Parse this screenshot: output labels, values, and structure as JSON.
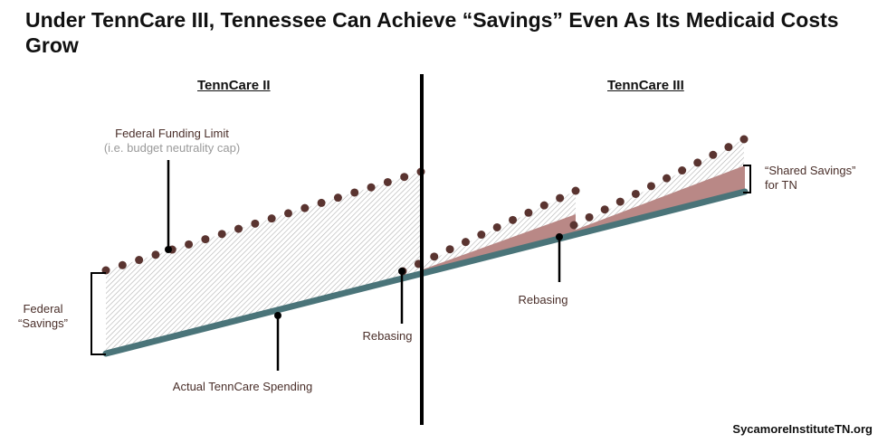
{
  "title": "Under TennCare III, Tennessee Can Achieve “Savings” Even As Its Medicaid Costs Grow",
  "sections": {
    "left": "TennCare II",
    "right": "TennCare III"
  },
  "labels": {
    "funding_limit": "Federal Funding Limit",
    "funding_limit_sub": "(i.e. budget neutrality cap)",
    "federal_savings_1": "Federal",
    "federal_savings_2": "“Savings”",
    "actual_spending": "Actual TennCare Spending",
    "rebasing_1": "Rebasing",
    "rebasing_2": "Rebasing",
    "shared_savings_1": "“Shared Savings”",
    "shared_savings_2": "for TN"
  },
  "credit": "SycamoreInstituteTN.org",
  "colors": {
    "spending": "#4a7479",
    "limit_dots": "#5a3430",
    "shared_savings": "#b98886",
    "hatch": "#b8b8b8"
  }
}
